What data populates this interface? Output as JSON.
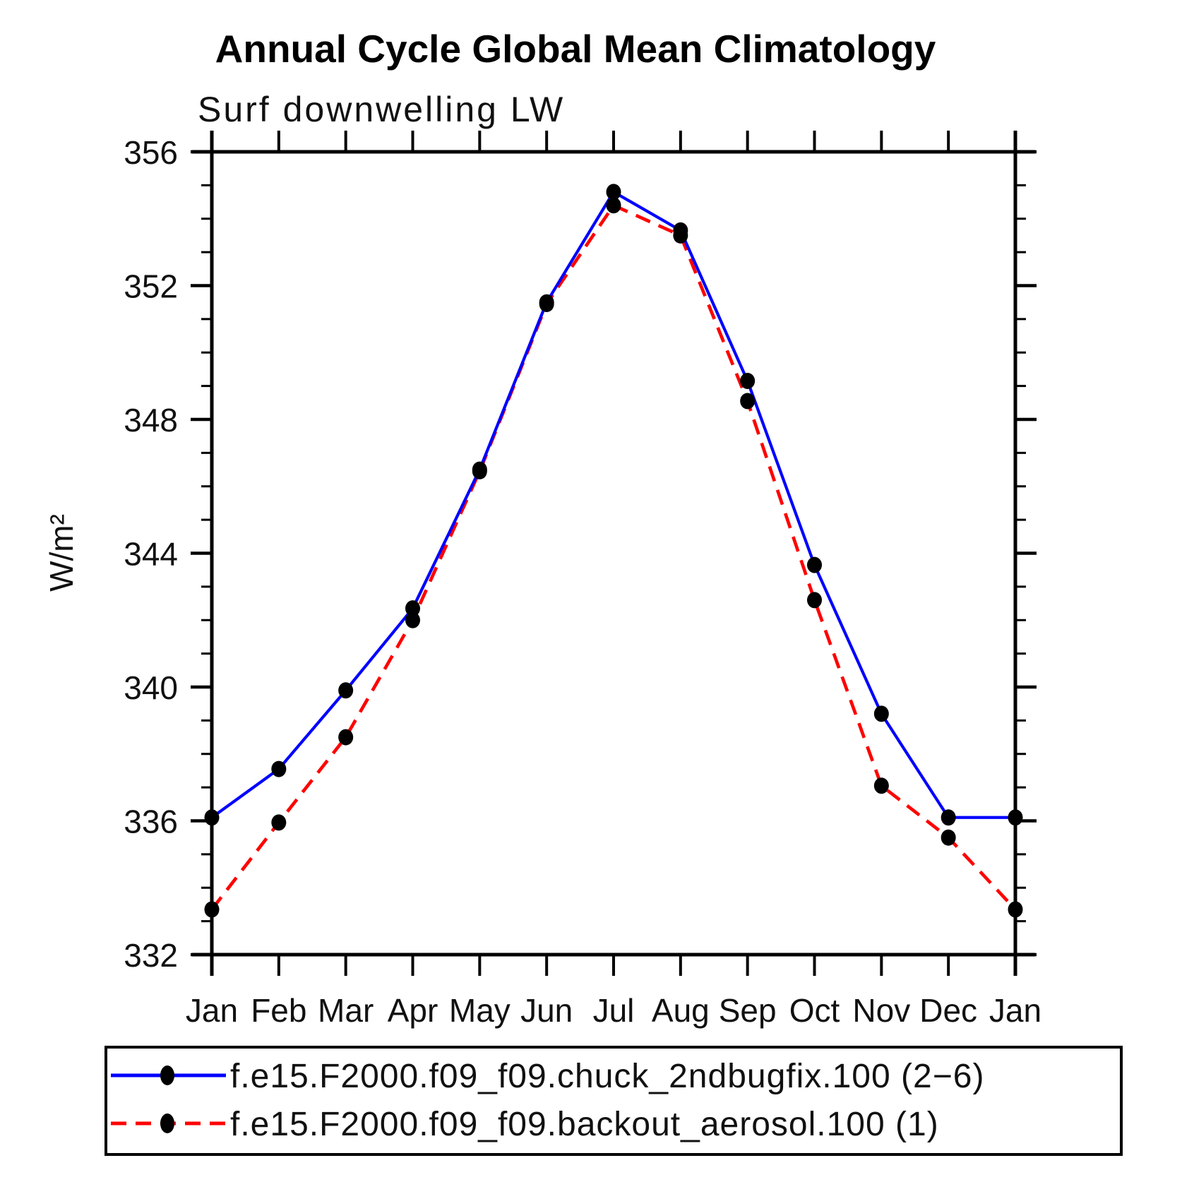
{
  "chart_data": {
    "type": "line",
    "title": "Annual Cycle Global Mean Climatology",
    "subtitle": "Surf downwelling LW",
    "ylabel": "W/m²",
    "xlabel": "",
    "x_categories": [
      "Jan",
      "Feb",
      "Mar",
      "Apr",
      "May",
      "Jun",
      "Jul",
      "Aug",
      "Sep",
      "Oct",
      "Nov",
      "Dec",
      "Jan"
    ],
    "ylim": [
      332,
      356
    ],
    "ytick_major": [
      356,
      352,
      348,
      344,
      340,
      336,
      332
    ],
    "ytick_minor_step": 1,
    "grid": "off",
    "legend_position": "bottom",
    "frame_color": "#000000",
    "marker_color": "#000000",
    "series": [
      {
        "name": "f.e15.F2000.f09_f09.chuck_2ndbugfix.100 (2−6)",
        "color": "#0000ff",
        "line_style": "solid",
        "marker": "circle",
        "values": [
          336.1,
          337.55,
          339.9,
          342.35,
          346.5,
          351.5,
          354.8,
          353.65,
          349.15,
          343.65,
          339.2,
          336.1,
          336.1
        ]
      },
      {
        "name": "f.e15.F2000.f09_f09.backout_aerosol.100 (1)",
        "color": "#ff0000",
        "line_style": "dashed",
        "marker": "circle",
        "values": [
          333.35,
          335.95,
          338.5,
          342.0,
          346.45,
          351.45,
          354.4,
          353.5,
          348.55,
          342.6,
          337.05,
          335.5,
          333.35
        ]
      }
    ]
  }
}
